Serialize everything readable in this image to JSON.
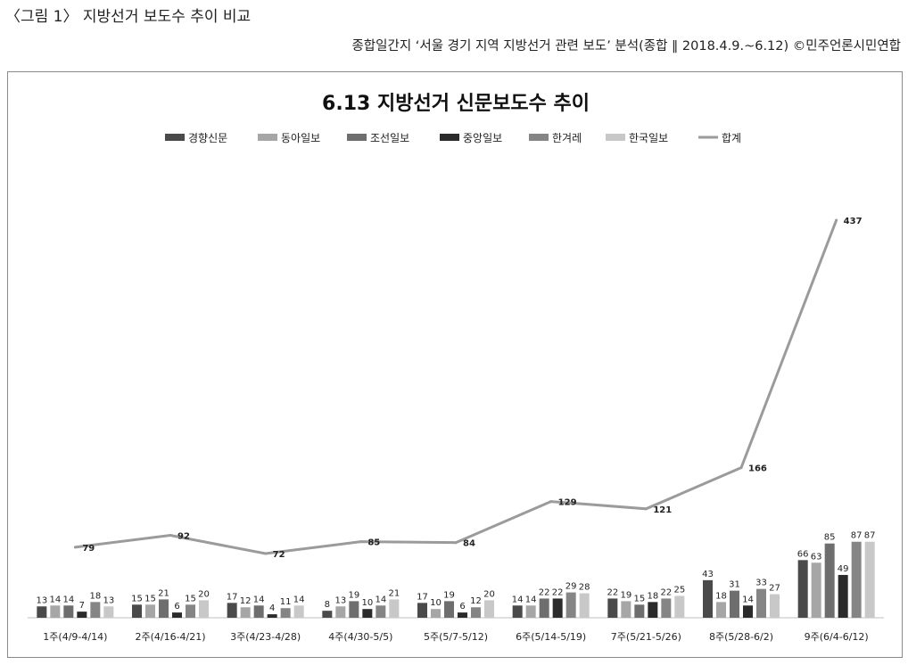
{
  "caption": "〈그림 1〉 지방선거 보도수 추이 비교",
  "source": "종합일간지 ‘서울 경기 지역 지방선거 관련 보도’ 분석(종합 ‖ 2018.4.9.~6.12)  ©민주언론시민연합",
  "chart_data": {
    "type": "bar",
    "title": "6.13 지방선거 신문보도수 추이",
    "categories": [
      "1주(4/9-4/14)",
      "2주(4/16-4/21)",
      "3주(4/23-4/28)",
      "4주(4/30-5/5)",
      "5주(5/7-5/12)",
      "6주(5/14-5/19)",
      "7주(5/21-5/26)",
      "8주(5/28-6/2)",
      "9주(6/4-6/12)"
    ],
    "series": [
      {
        "name": "경향신문",
        "color": "#4a4a4a",
        "values": [
          13,
          15,
          17,
          8,
          17,
          14,
          22,
          43,
          66
        ]
      },
      {
        "name": "동아일보",
        "color": "#a6a6a6",
        "values": [
          14,
          15,
          12,
          13,
          10,
          14,
          19,
          18,
          63
        ]
      },
      {
        "name": "조선일보",
        "color": "#6e6e6e",
        "values": [
          14,
          21,
          14,
          19,
          19,
          22,
          15,
          31,
          85
        ]
      },
      {
        "name": "중앙일보",
        "color": "#2b2b2b",
        "values": [
          7,
          6,
          4,
          10,
          6,
          22,
          18,
          14,
          49
        ]
      },
      {
        "name": "한겨레",
        "color": "#858585",
        "values": [
          18,
          15,
          11,
          14,
          12,
          29,
          22,
          33,
          87
        ]
      },
      {
        "name": "한국일보",
        "color": "#c8c8c8",
        "values": [
          13,
          20,
          14,
          21,
          20,
          28,
          25,
          27,
          87
        ]
      }
    ],
    "total": {
      "name": "합계",
      "type": "line",
      "color": "#9b9b9b",
      "values": [
        79,
        92,
        72,
        85,
        84,
        129,
        121,
        166,
        437
      ]
    },
    "legend_position": "top",
    "ylim": [
      0,
      600
    ],
    "grid": false
  }
}
